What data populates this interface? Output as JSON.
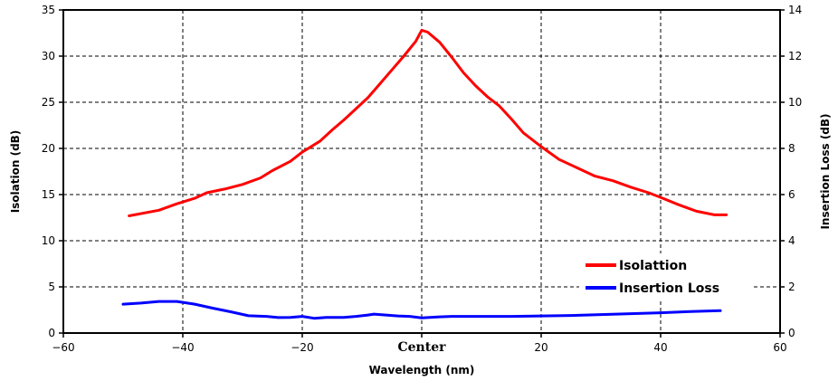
{
  "chart_data": {
    "type": "line",
    "title": "",
    "xlabel": "Wavelength (nm)",
    "ylabel_left": "Isolation (dB)",
    "ylabel_right": "Insertion Loss (dB)",
    "xlim": [
      -60,
      60
    ],
    "ylim_left": [
      0,
      35
    ],
    "ylim_right": [
      0,
      14
    ],
    "grid": true,
    "legend_position": "bottom-right",
    "x_ticks": [
      "−60",
      "−40",
      "−20",
      "Center",
      "20",
      "40",
      "60"
    ],
    "y_left_ticks": [
      "0",
      "5",
      "10",
      "15",
      "20",
      "25",
      "30",
      "35"
    ],
    "y_right_ticks": [
      "0",
      "2",
      "4",
      "6",
      "8",
      "10",
      "12",
      "14"
    ],
    "series": [
      {
        "name": "Isolattion",
        "axis": "left",
        "color": "#ff0000",
        "x": [
          -49,
          -44,
          -41,
          -38,
          -36,
          -33,
          -30,
          -27,
          -25,
          -22,
          -20,
          -17,
          -15,
          -13,
          -11,
          -9,
          -7,
          -5,
          -3,
          -1,
          0,
          1,
          3,
          5,
          7,
          9,
          11,
          13,
          15,
          17,
          20,
          23,
          26,
          29,
          32,
          35,
          38,
          40,
          43,
          46,
          49,
          51
        ],
        "values": [
          12.7,
          13.3,
          14.0,
          14.6,
          15.2,
          15.6,
          16.1,
          16.8,
          17.6,
          18.6,
          19.6,
          20.8,
          22.0,
          23.1,
          24.3,
          25.5,
          27.0,
          28.5,
          30.0,
          31.6,
          32.8,
          32.6,
          31.5,
          29.9,
          28.2,
          26.8,
          25.6,
          24.6,
          23.2,
          21.7,
          20.2,
          18.8,
          17.9,
          17.0,
          16.5,
          15.8,
          15.2,
          14.7,
          13.9,
          13.2,
          12.8,
          12.8
        ]
      },
      {
        "name": "Insertion Loss",
        "axis": "right",
        "color": "#0000ff",
        "x": [
          -50,
          -47,
          -44,
          -41,
          -38,
          -35,
          -32,
          -29,
          -26,
          -24,
          -22,
          -20,
          -18,
          -16,
          -13,
          -11,
          -9,
          -8,
          -6,
          -4,
          -2,
          0,
          3,
          5,
          10,
          15,
          20,
          25,
          30,
          35,
          40,
          45,
          50
        ],
        "values": [
          1.25,
          1.3,
          1.37,
          1.37,
          1.25,
          1.08,
          0.92,
          0.75,
          0.72,
          0.67,
          0.68,
          0.72,
          0.64,
          0.68,
          0.68,
          0.72,
          0.78,
          0.82,
          0.78,
          0.74,
          0.72,
          0.66,
          0.7,
          0.72,
          0.72,
          0.72,
          0.74,
          0.76,
          0.8,
          0.84,
          0.88,
          0.93,
          0.97
        ]
      }
    ]
  }
}
